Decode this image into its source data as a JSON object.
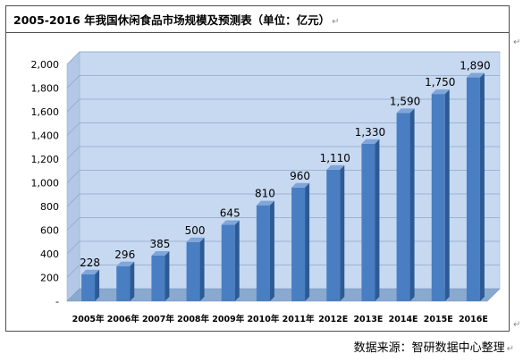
{
  "chart_data": {
    "type": "bar",
    "title": "2005-2016 年我国休闲食品市场规模及预测表（单位：亿元）",
    "categories": [
      "2005年",
      "2006年",
      "2007年",
      "2008年",
      "2009年",
      "2010年",
      "2011年",
      "2012E",
      "2013E",
      "2014E",
      "2015E",
      "2016E"
    ],
    "values": [
      228,
      296,
      385,
      500,
      645,
      810,
      960,
      1110,
      1330,
      1590,
      1750,
      1890
    ],
    "data_labels": [
      "228",
      "296",
      "385",
      "500",
      "645",
      "810",
      "960",
      "1,110",
      "1,330",
      "1,590",
      "1,750",
      "1,890"
    ],
    "yticks": [
      "-",
      "200",
      "400",
      "600",
      "800",
      "1,000",
      "1,200",
      "1,400",
      "1,600",
      "1,800",
      "2,000"
    ],
    "ylim": [
      0,
      2000
    ],
    "grid": true,
    "style": "3d-column",
    "colors": {
      "bar_front": "#4a7ec2",
      "bar_side": "#2c5a94",
      "bar_top": "#7ea6d8",
      "back_wall": "#c7d9f1",
      "floor": "#8aa9cf"
    }
  },
  "source": "数据来源：智研数据中心整理",
  "para_mark": "↵"
}
